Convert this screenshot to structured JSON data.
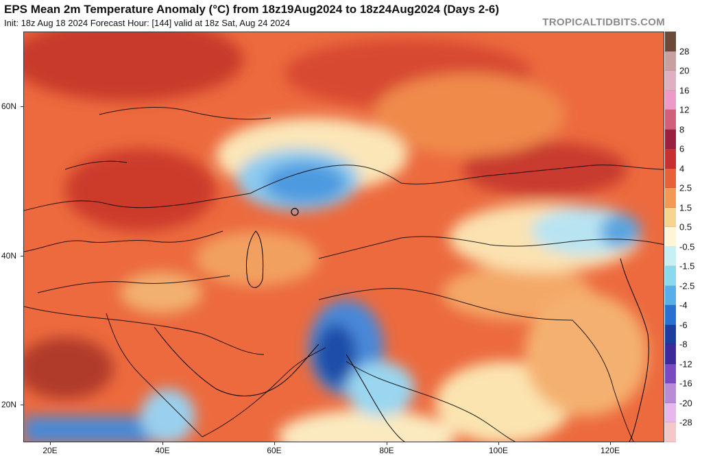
{
  "header": {
    "title": "EPS Mean 2m Temperature Anomaly (°C) from 18z19Aug2024 to 18z24Aug2024 (Days 2-6)",
    "subtitle": "Init: 18z Aug 18 2024   Forecast Hour: [144]   valid at 18z Sat, Aug 24 2024",
    "brand": "TROPICALTIDBITS.COM"
  },
  "axes": {
    "lat_labels": [
      "60N",
      "40N",
      "20N"
    ],
    "lon_labels": [
      "20E",
      "40E",
      "60E",
      "80E",
      "100E",
      "120E"
    ]
  },
  "colorbar": {
    "labels": [
      "28",
      "20",
      "16",
      "12",
      "8",
      "6",
      "4",
      "2.5",
      "1.5",
      "0.5",
      "-0.5",
      "-1.5",
      "-2.5",
      "-4",
      "-6",
      "-8",
      "-12",
      "-16",
      "-20",
      "-28"
    ],
    "colors": [
      "#6b4a3a",
      "#c9a0a0",
      "#e0b0c0",
      "#ee9ac8",
      "#d0607a",
      "#9a2040",
      "#c83030",
      "#e8603a",
      "#f29a55",
      "#f7d490",
      "#fff6d8",
      "#c8f0f4",
      "#8cd8ee",
      "#58aee8",
      "#2a70d0",
      "#1a3e9e",
      "#3a2a9a",
      "#7a4ac0",
      "#b88ad8",
      "#e6b8ec",
      "#f4c8c8"
    ]
  }
}
